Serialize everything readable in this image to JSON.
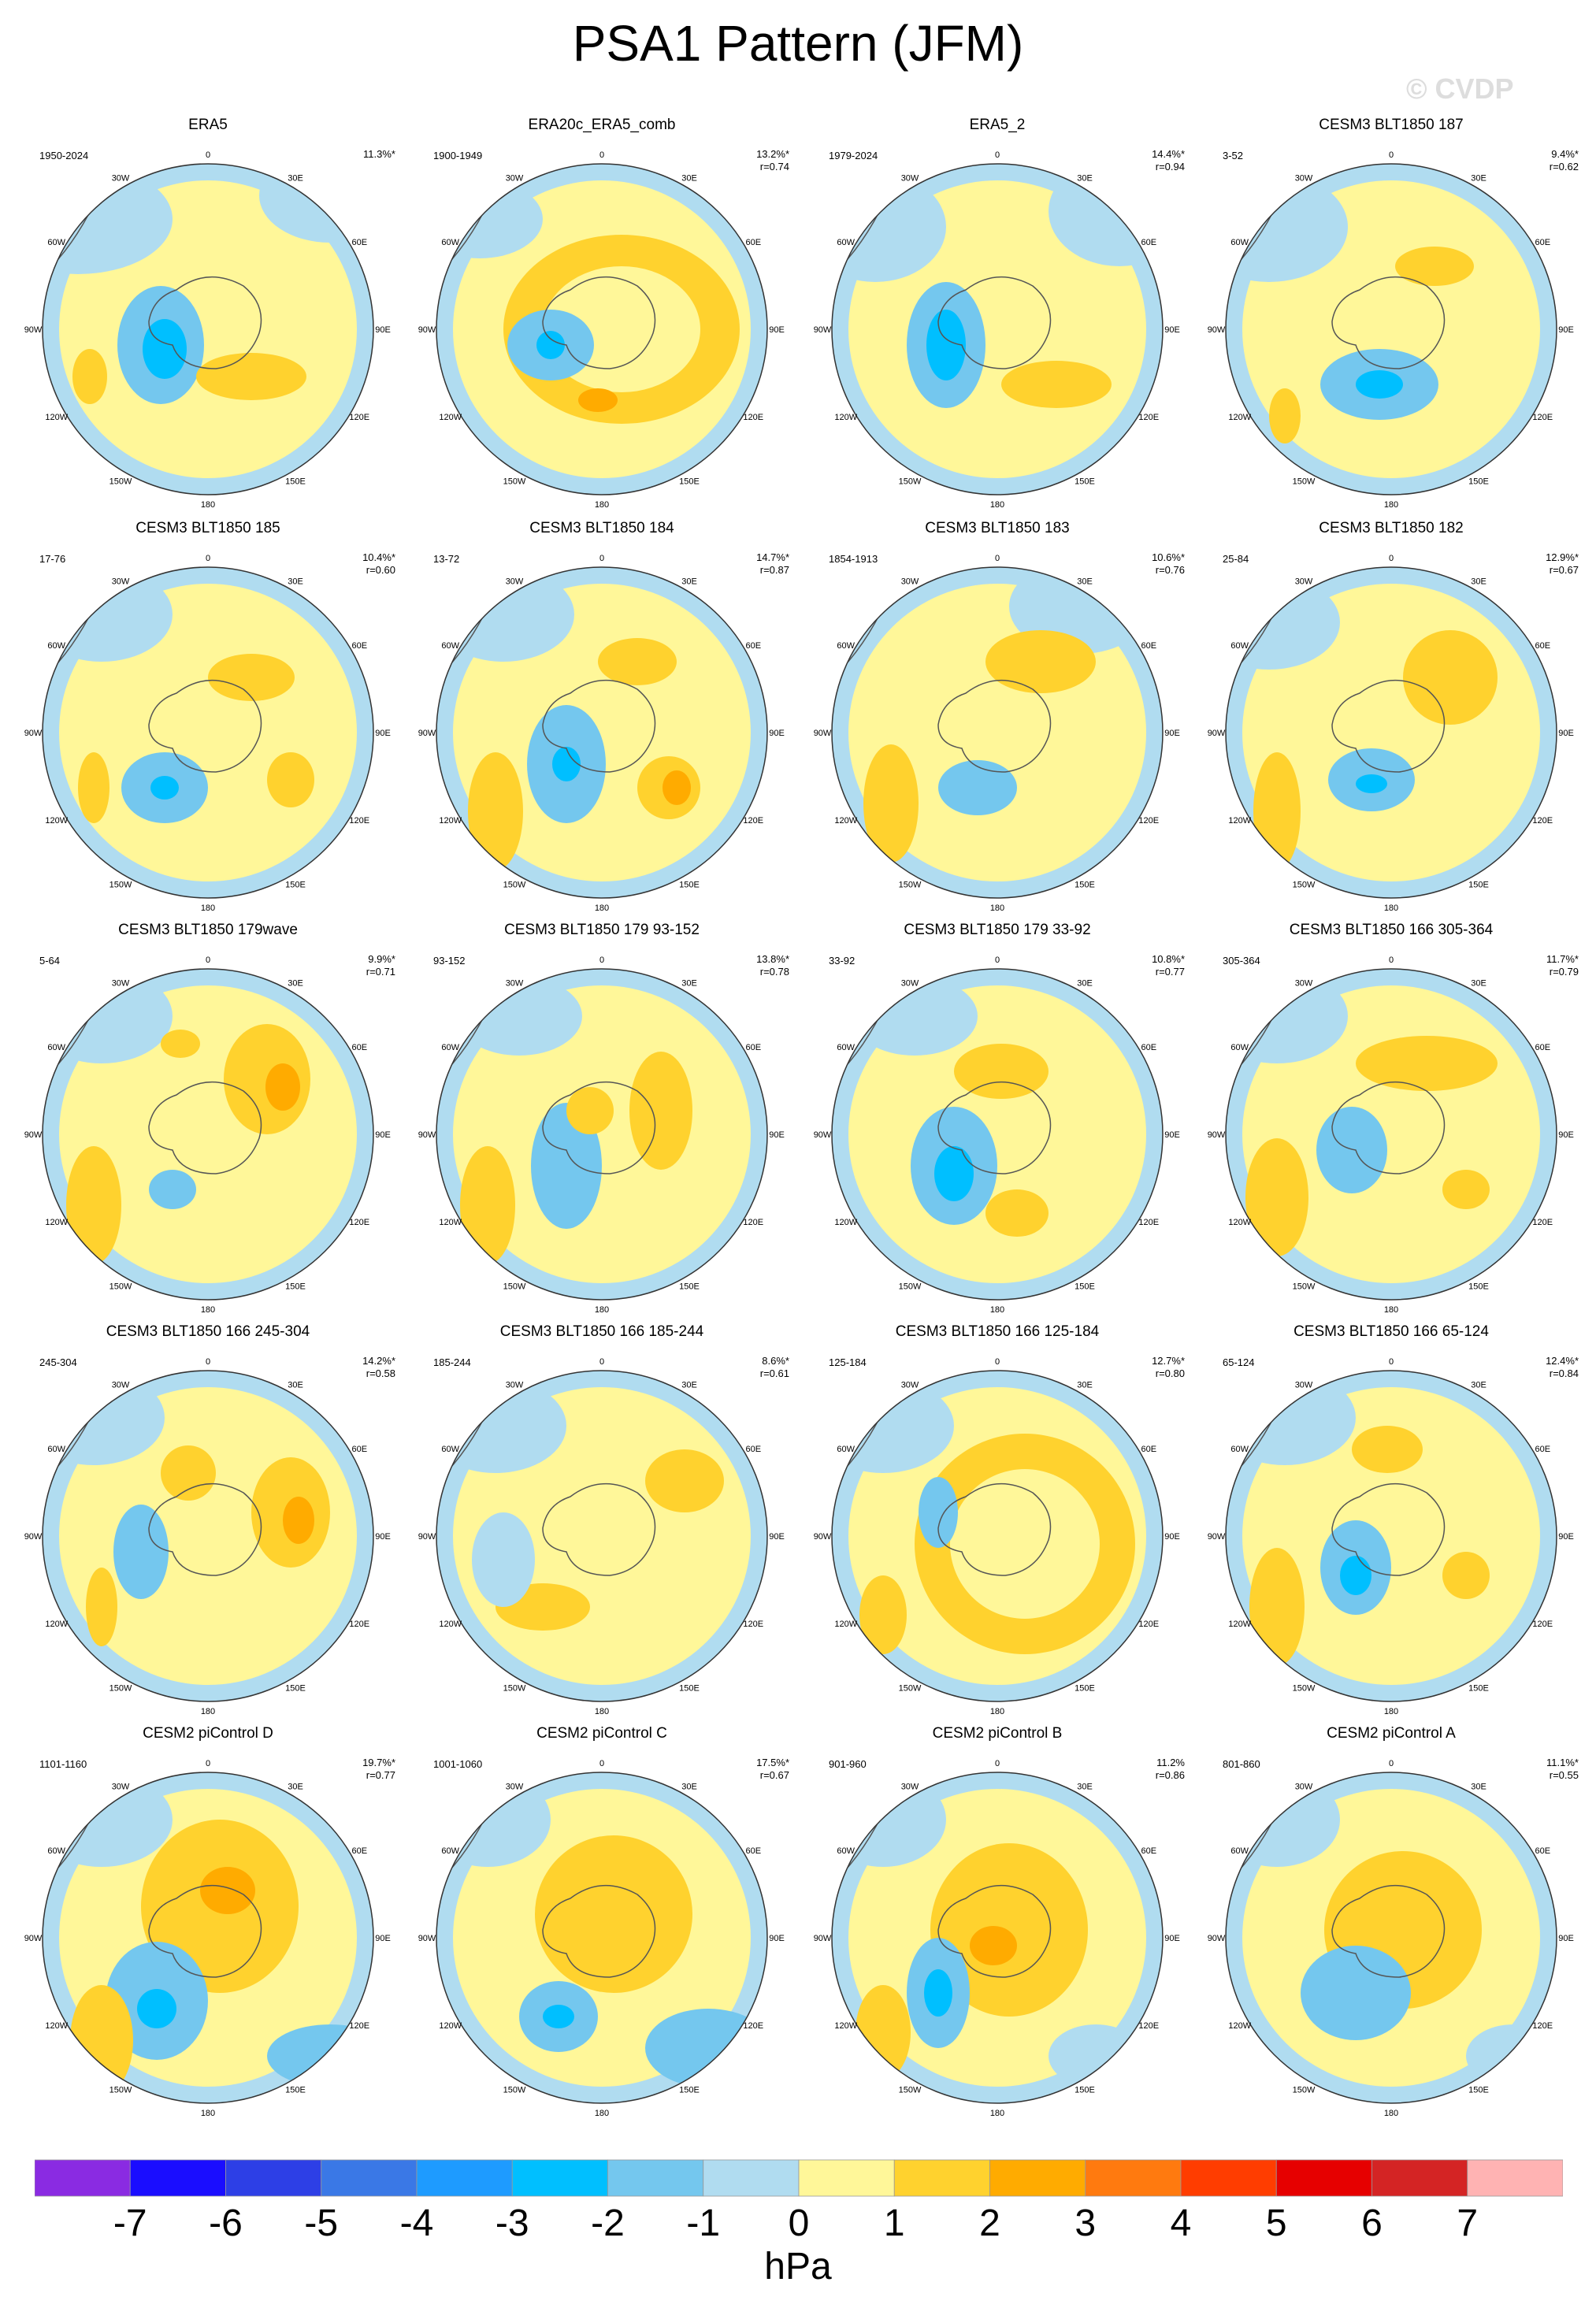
{
  "title": "PSA1 Pattern (JFM)",
  "watermark": "© CVDP",
  "chart_data": {
    "type": "polar-contour-map",
    "projection": "south-polar-stereographic",
    "longitude_labels": [
      "0",
      "30E",
      "60E",
      "90E",
      "120E",
      "150E",
      "180",
      "150W",
      "120W",
      "90W",
      "60W",
      "30W"
    ],
    "panels": [
      {
        "title": "ERA5",
        "period": "1950-2024",
        "variance": "11.3%*",
        "corr": ""
      },
      {
        "title": "ERA20c_ERA5_comb",
        "period": "1900-1949",
        "variance": "13.2%*",
        "corr": "r=0.74"
      },
      {
        "title": "ERA5_2",
        "period": "1979-2024",
        "variance": "14.4%*",
        "corr": "r=0.94"
      },
      {
        "title": "CESM3 BLT1850 187",
        "period": "3-52",
        "variance": "9.4%*",
        "corr": "r=0.62"
      },
      {
        "title": "CESM3 BLT1850 185",
        "period": "17-76",
        "variance": "10.4%*",
        "corr": "r=0.60"
      },
      {
        "title": "CESM3 BLT1850 184",
        "period": "13-72",
        "variance": "14.7%*",
        "corr": "r=0.87"
      },
      {
        "title": "CESM3 BLT1850 183",
        "period": "1854-1913",
        "variance": "10.6%*",
        "corr": "r=0.76"
      },
      {
        "title": "CESM3 BLT1850 182",
        "period": "25-84",
        "variance": "12.9%*",
        "corr": "r=0.67"
      },
      {
        "title": "CESM3 BLT1850 179wave",
        "period": "5-64",
        "variance": "9.9%*",
        "corr": "r=0.71"
      },
      {
        "title": "CESM3 BLT1850 179 93-152",
        "period": "93-152",
        "variance": "13.8%*",
        "corr": "r=0.78"
      },
      {
        "title": "CESM3 BLT1850 179 33-92",
        "period": "33-92",
        "variance": "10.8%*",
        "corr": "r=0.77"
      },
      {
        "title": "CESM3 BLT1850 166 305-364",
        "period": "305-364",
        "variance": "11.7%*",
        "corr": "r=0.79"
      },
      {
        "title": "CESM3 BLT1850 166 245-304",
        "period": "245-304",
        "variance": "14.2%*",
        "corr": "r=0.58"
      },
      {
        "title": "CESM3 BLT1850 166 185-244",
        "period": "185-244",
        "variance": "8.6%*",
        "corr": "r=0.61"
      },
      {
        "title": "CESM3 BLT1850 166 125-184",
        "period": "125-184",
        "variance": "12.7%*",
        "corr": "r=0.80"
      },
      {
        "title": "CESM3 BLT1850 166 65-124",
        "period": "65-124",
        "variance": "12.4%*",
        "corr": "r=0.84"
      },
      {
        "title": "CESM2 piControl D",
        "period": "1101-1160",
        "variance": "19.7%*",
        "corr": "r=0.77"
      },
      {
        "title": "CESM2 piControl C",
        "period": "1001-1060",
        "variance": "17.5%*",
        "corr": "r=0.67"
      },
      {
        "title": "CESM2 piControl B",
        "period": "901-960",
        "variance": "11.2%",
        "corr": "r=0.86"
      },
      {
        "title": "CESM2 piControl A",
        "period": "801-860",
        "variance": "11.1%*",
        "corr": "r=0.55"
      }
    ],
    "colorbar": {
      "unit": "hPa",
      "tick_labels": [
        "-7",
        "-6",
        "-5",
        "-4",
        "-3",
        "-2",
        "-1",
        "0",
        "1",
        "2",
        "3",
        "4",
        "5",
        "6",
        "7"
      ],
      "colors": [
        "#8a2be2",
        "#1a0dff",
        "#2d3fe6",
        "#3a78e6",
        "#1e9bff",
        "#00bfff",
        "#74c7ee",
        "#b0dcf0",
        "#fff799",
        "#ffd22e",
        "#ffab00",
        "#ff7a0f",
        "#ff3d00",
        "#e60000",
        "#d42424",
        "#ffb3b3"
      ]
    }
  }
}
